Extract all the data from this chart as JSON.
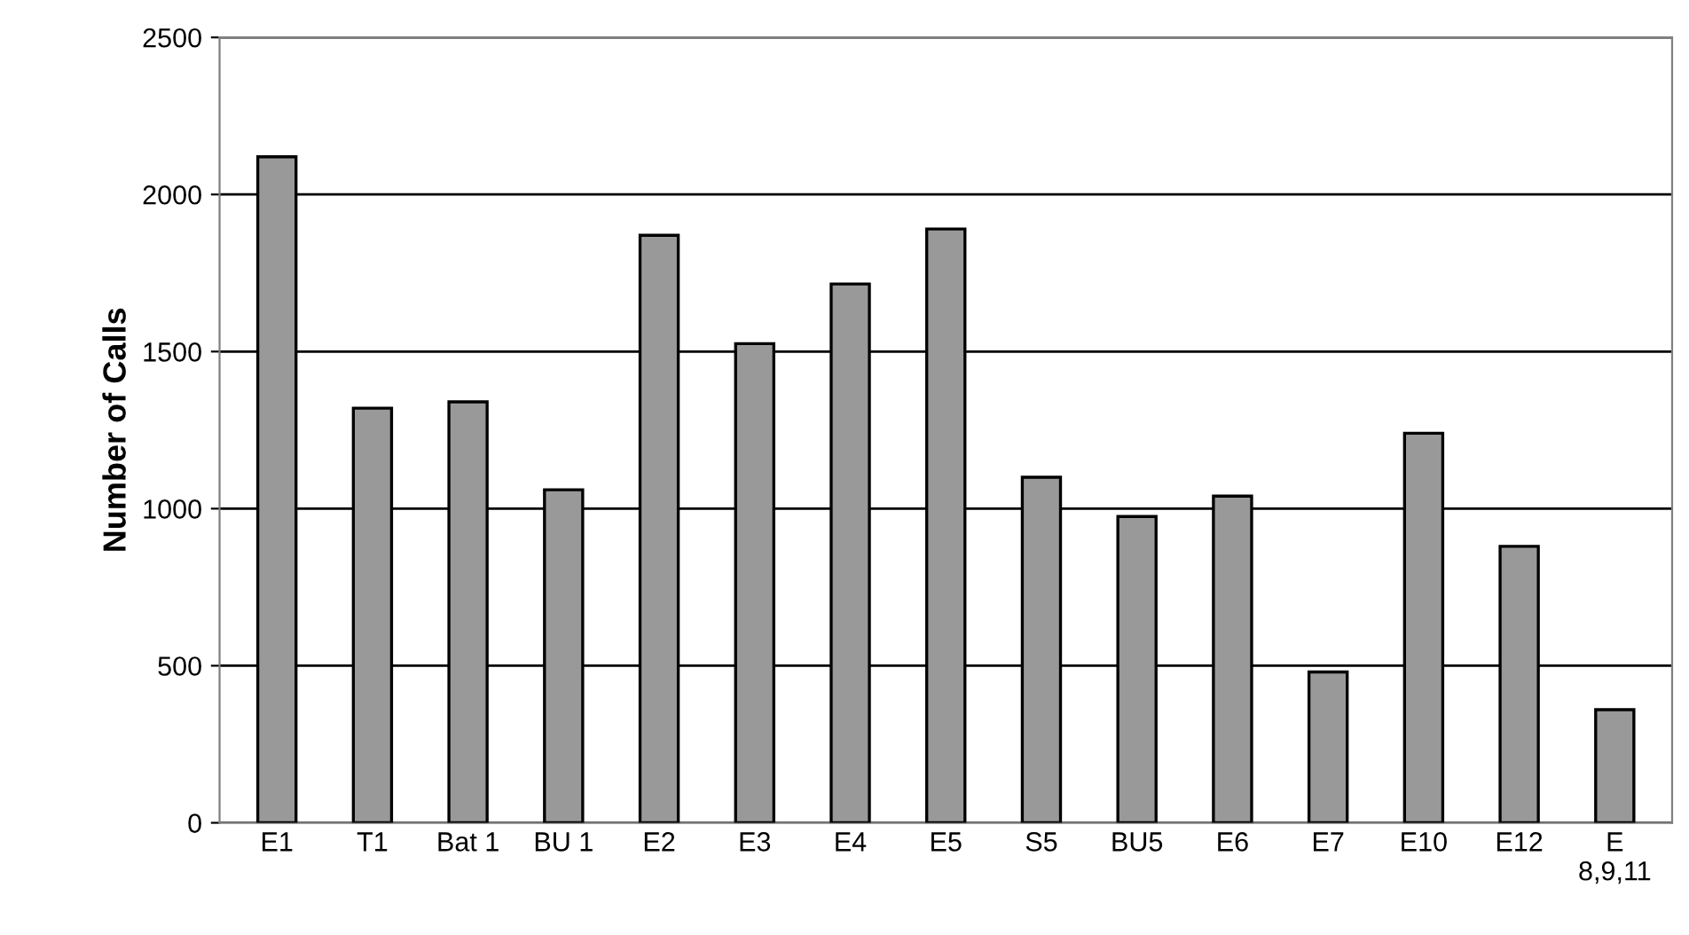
{
  "chart_data": {
    "type": "bar",
    "ylabel": "Number of Calls",
    "categories": [
      "E1",
      "T1",
      "Bat 1",
      "BU 1",
      "E2",
      "E3",
      "E4",
      "E5",
      "S5",
      "BU5",
      "E6",
      "E7",
      "E10",
      "E12",
      "E\n8,9,11"
    ],
    "values": [
      2120,
      1320,
      1340,
      1060,
      1870,
      1525,
      1715,
      1890,
      1100,
      975,
      1040,
      480,
      1240,
      880,
      360
    ],
    "color": "#999999",
    "ylim": [
      0,
      2500
    ],
    "yticks": [
      0,
      500,
      1000,
      1500,
      2000,
      2500
    ],
    "grid": "y",
    "legend": false
  }
}
